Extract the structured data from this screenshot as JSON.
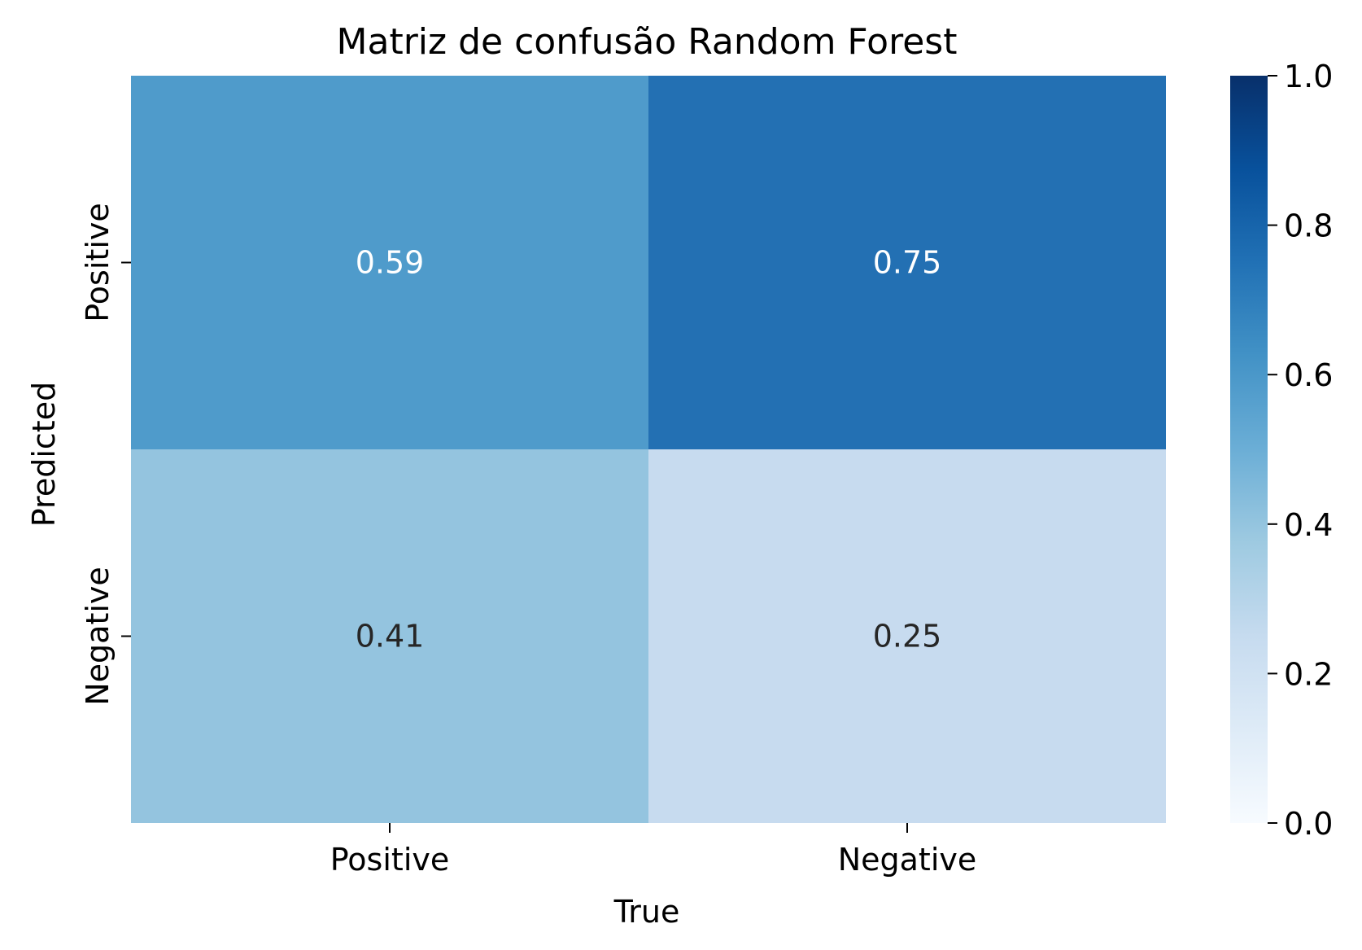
{
  "chart_data": {
    "type": "heatmap",
    "title": "Matriz de confusão Random Forest",
    "xlabel": "True",
    "ylabel": "Predicted",
    "x_categories": [
      "Positive",
      "Negative"
    ],
    "y_categories": [
      "Positive",
      "Negative"
    ],
    "values": [
      [
        0.59,
        0.75
      ],
      [
        0.41,
        0.25
      ]
    ],
    "value_labels": [
      [
        "0.59",
        "0.75"
      ],
      [
        "0.41",
        "0.25"
      ]
    ],
    "colormap": "Blues",
    "colorbar": {
      "range": [
        0.0,
        1.0
      ],
      "ticks": [
        0.0,
        0.2,
        0.4,
        0.6,
        0.8,
        1.0
      ],
      "tick_labels": [
        "0.0",
        "0.2",
        "0.4",
        "0.6",
        "0.8",
        "1.0"
      ]
    },
    "cell_colors": [
      [
        "#4f9bcb",
        "#2370b3"
      ],
      [
        "#94c4df",
        "#c7dbef"
      ]
    ],
    "annotation_colors": [
      [
        "#ffffff",
        "#ffffff"
      ],
      [
        "#262626",
        "#262626"
      ]
    ],
    "grid": false
  }
}
